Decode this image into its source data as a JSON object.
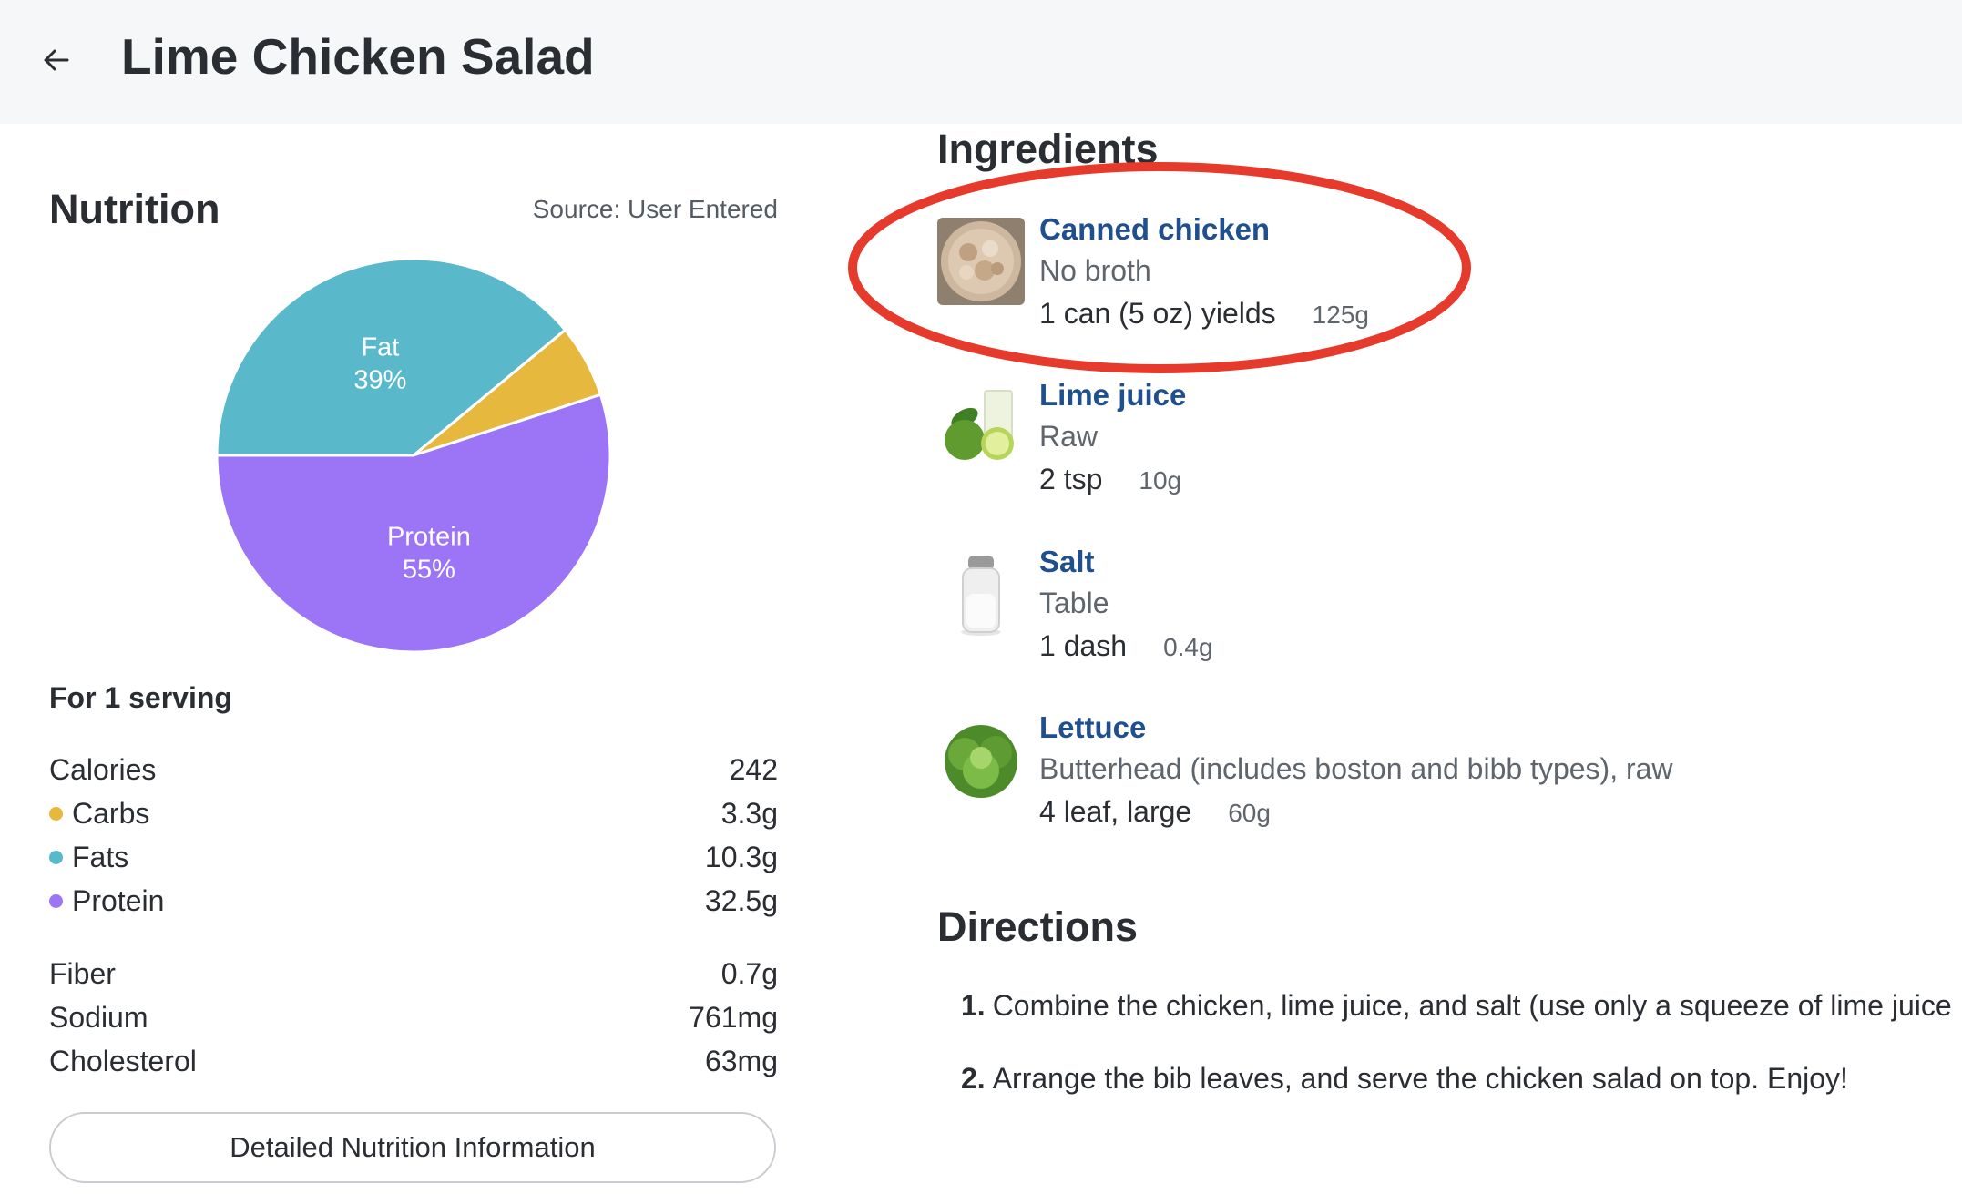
{
  "header": {
    "title": "Lime Chicken Salad",
    "back_icon": "arrow-left-icon"
  },
  "nutrition": {
    "heading": "Nutrition",
    "source": "Source: User Entered",
    "serving": "For 1 serving",
    "rows": [
      {
        "label": "Calories",
        "value": "242"
      },
      {
        "label": "Carbs",
        "value": "3.3g",
        "color": "#e6b83e"
      },
      {
        "label": "Fats",
        "value": "10.3g",
        "color": "#59b9cb"
      },
      {
        "label": "Protein",
        "value": "32.5g",
        "color": "#9b75f6"
      }
    ],
    "extra_rows": [
      {
        "label": "Fiber",
        "value": "0.7g"
      },
      {
        "label": "Sodium",
        "value": "761mg"
      },
      {
        "label": "Cholesterol",
        "value": "63mg"
      }
    ],
    "detail_button": "Detailed Nutrition Information"
  },
  "chart_data": {
    "type": "pie",
    "slices": [
      {
        "name": "Fat",
        "value": 39,
        "label": "39%",
        "color": "#59b9cb",
        "show_label": true
      },
      {
        "name": "Carbs",
        "value": 6,
        "label": "",
        "color": "#e6b83e",
        "show_label": false
      },
      {
        "name": "Protein",
        "value": 55,
        "label": "55%",
        "color": "#9b75f6",
        "show_label": true
      }
    ]
  },
  "ingredients": {
    "heading": "Ingredients",
    "items": [
      {
        "name": "Canned chicken",
        "desc": "No broth",
        "amount": "1 can (5 oz) yields",
        "weight": "125g",
        "icon": "canned-chicken-image"
      },
      {
        "name": "Lime juice",
        "desc": "Raw",
        "amount": "2 tsp",
        "weight": "10g",
        "icon": "lime-image"
      },
      {
        "name": "Salt",
        "desc": "Table",
        "amount": "1 dash",
        "weight": "0.4g",
        "icon": "salt-shaker-image"
      },
      {
        "name": "Lettuce",
        "desc": "Butterhead (includes boston and bibb types), raw",
        "amount": "4 leaf, large",
        "weight": "60g",
        "icon": "lettuce-image"
      }
    ],
    "highlight_color": "#e53a2c"
  },
  "directions": {
    "heading": "Directions",
    "steps": [
      {
        "num": "1.",
        "text": "Combine the chicken, lime juice, and salt (use only a squeeze of lime juice"
      },
      {
        "num": "2.",
        "text": "Arrange the bib leaves, and serve the chicken salad on top. Enjoy!"
      }
    ]
  }
}
